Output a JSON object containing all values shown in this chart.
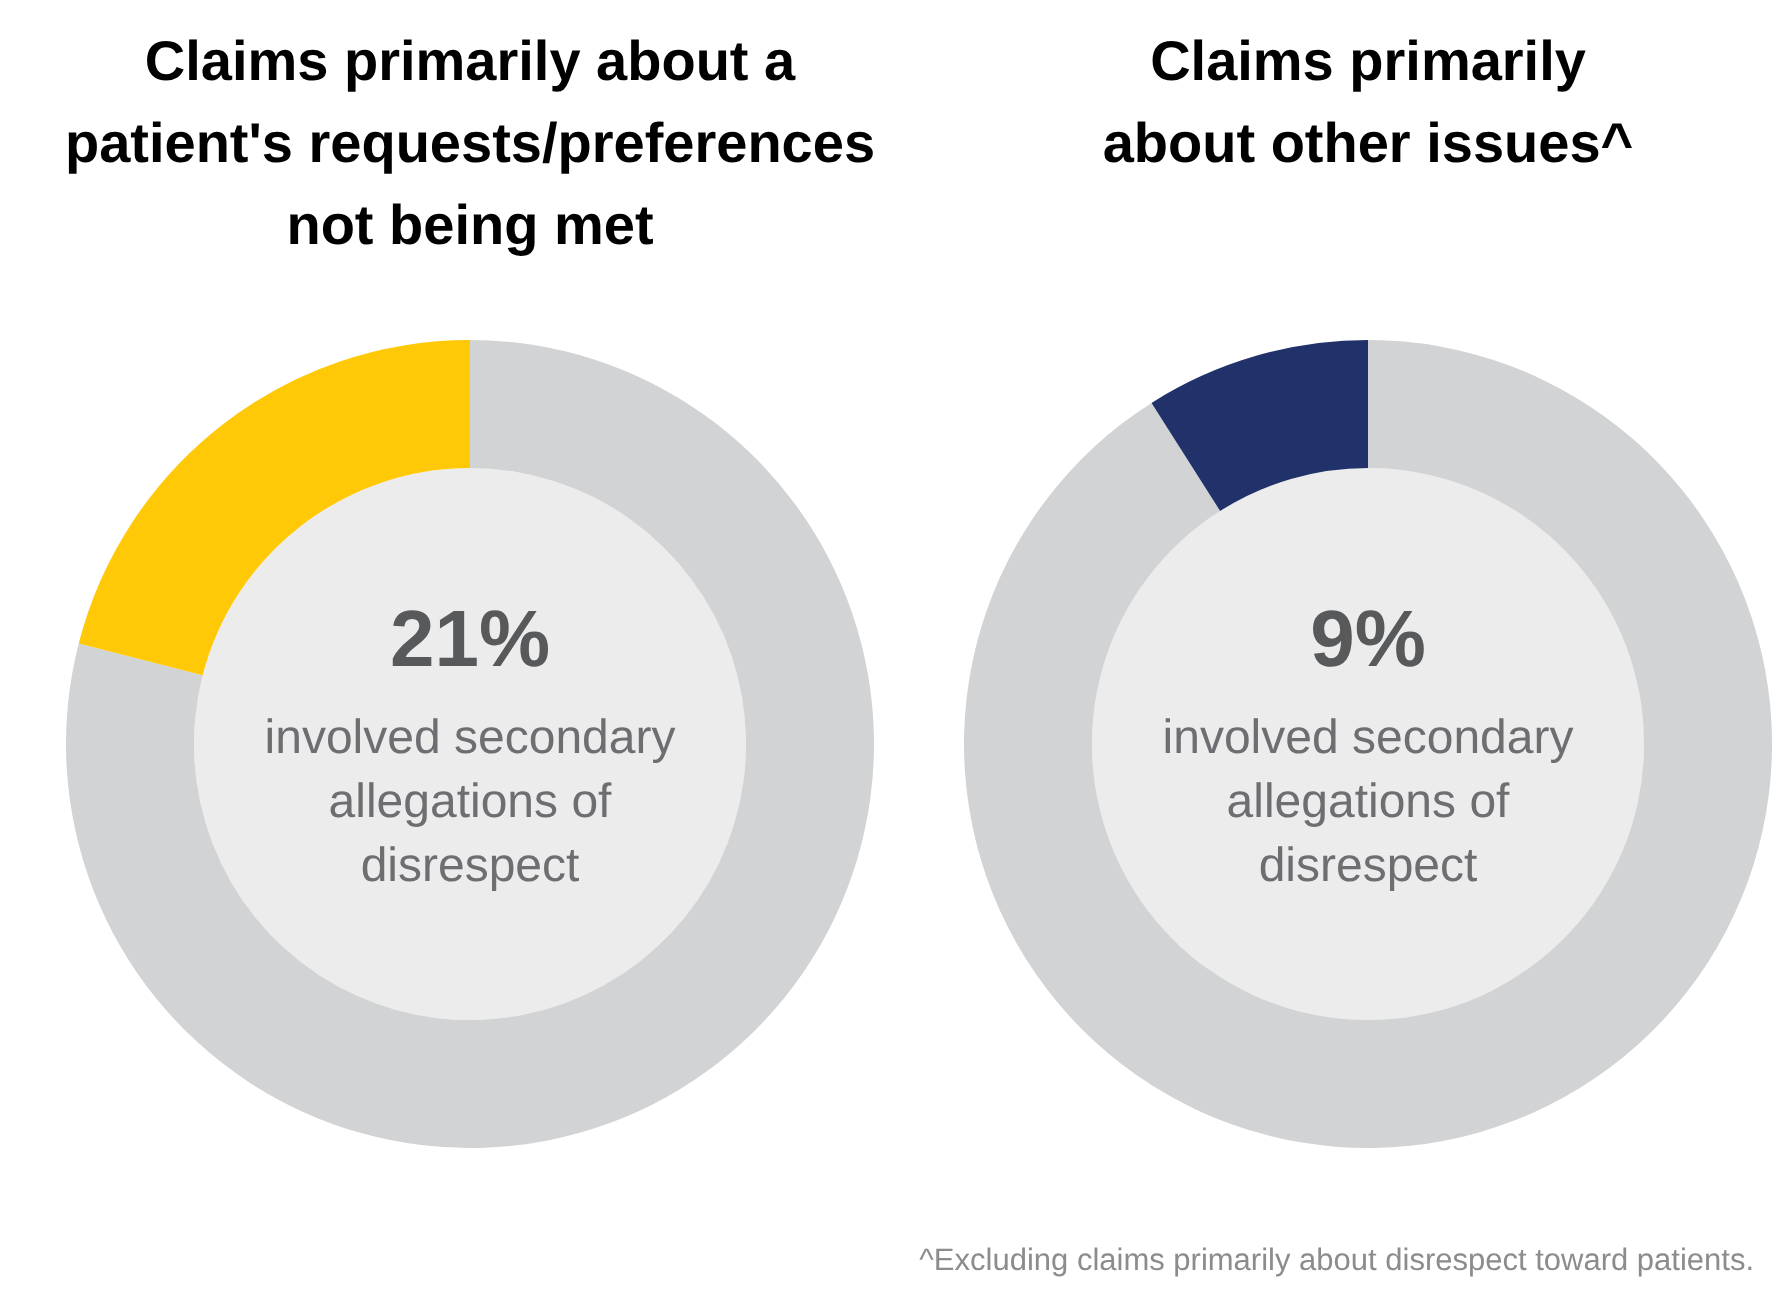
{
  "chart_data": [
    {
      "type": "donut",
      "title": "Claims primarily about a patient's requests/preferences not being met",
      "categories": [
        null,
        "involved secondary allegations of disrespect"
      ],
      "values": [
        79,
        21
      ],
      "colors": [
        "#d1d3d4",
        "#ffc907"
      ],
      "value_labels": [
        null,
        "21%"
      ]
    },
    {
      "type": "donut",
      "title": "Claims primarily about other issues^",
      "categories": [
        null,
        "involved secondary allegations of disrespect"
      ],
      "values": [
        91,
        9
      ],
      "colors": [
        "#d1d3d4",
        "#21316a"
      ],
      "value_labels": [
        null,
        "9%"
      ],
      "annotations": [
        "^Excluding claims primarily about disrespect toward patients."
      ]
    }
  ]
}
